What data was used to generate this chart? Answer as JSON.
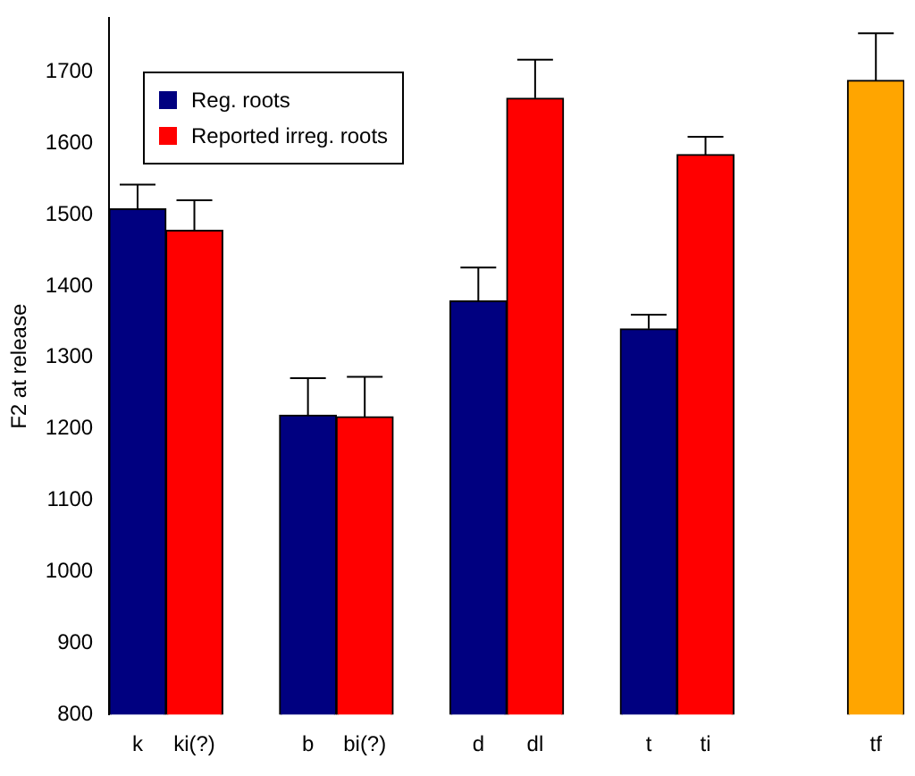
{
  "chart_data": {
    "type": "bar",
    "ylabel": "F2 at release",
    "categories": [
      "k",
      "ki(?)",
      null,
      "b",
      "bi(?)",
      null,
      "d",
      "dl",
      null,
      "t",
      "ti",
      null,
      null,
      "tf"
    ],
    "series": [
      {
        "name": "Reg. roots",
        "color": "#000080",
        "values": [
          1508,
          null,
          null,
          1219,
          null,
          null,
          1379,
          null,
          null,
          1340,
          null,
          null,
          null,
          null
        ],
        "errors": [
          [
            1508,
            1542
          ],
          null,
          null,
          [
            1219,
            1271
          ],
          null,
          null,
          [
            1379,
            1426
          ],
          null,
          null,
          [
            1340,
            1360
          ],
          null,
          null,
          null,
          null
        ]
      },
      {
        "name": "Reported irreg. roots",
        "color": "#ff0000",
        "values": [
          null,
          1478,
          null,
          null,
          1217,
          null,
          null,
          1663,
          null,
          null,
          1584,
          null,
          null,
          null
        ],
        "errors": [
          null,
          [
            1478,
            1520
          ],
          null,
          null,
          [
            1217,
            1273
          ],
          null,
          null,
          [
            1663,
            1717
          ],
          null,
          null,
          [
            1584,
            1609
          ],
          null,
          null,
          null
        ]
      },
      {
        "color": "#ffa500",
        "values": [
          null,
          null,
          null,
          null,
          null,
          null,
          null,
          null,
          null,
          null,
          null,
          null,
          null,
          1688
        ],
        "errors": [
          null,
          null,
          null,
          null,
          null,
          null,
          null,
          null,
          null,
          null,
          null,
          null,
          null,
          [
            1688,
            1754
          ]
        ]
      }
    ],
    "ylim": [
      800,
      1775
    ],
    "yticks": [
      800,
      900,
      1000,
      1100,
      1200,
      1300,
      1400,
      1500,
      1600,
      1700
    ],
    "grid": false,
    "legend": "top left"
  }
}
